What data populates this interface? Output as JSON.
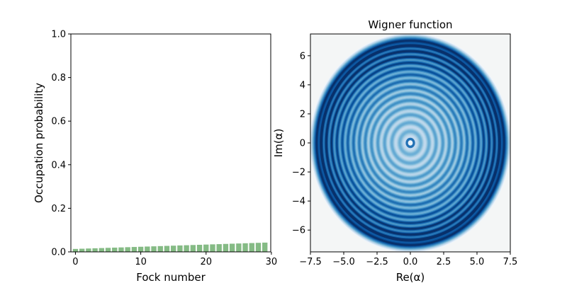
{
  "chart_data": [
    {
      "type": "bar",
      "title": "",
      "xlabel": "Fock number",
      "ylabel": "Occupation probability",
      "xlim": [
        -0.7,
        29.9
      ],
      "ylim": [
        0,
        1.0
      ],
      "xticks": [
        0,
        10,
        20,
        30
      ],
      "yticks": [
        0.0,
        0.2,
        0.4,
        0.6,
        0.8,
        1.0
      ],
      "xtick_labels": [
        "0",
        "10",
        "20",
        "30"
      ],
      "ytick_labels": [
        "0.0",
        "0.2",
        "0.4",
        "0.6",
        "0.8",
        "1.0"
      ],
      "bar_color": "#66aa66",
      "bar_alpha": 0.8,
      "bar_width": 0.8,
      "x": [
        0,
        1,
        2,
        3,
        4,
        5,
        6,
        7,
        8,
        9,
        10,
        11,
        12,
        13,
        14,
        15,
        16,
        17,
        18,
        19,
        20,
        21,
        22,
        23,
        24,
        25,
        26,
        27,
        28,
        29
      ],
      "values": [
        0.0135,
        0.0145,
        0.0155,
        0.0165,
        0.0175,
        0.0185,
        0.0195,
        0.0205,
        0.0215,
        0.0225,
        0.0235,
        0.0245,
        0.0255,
        0.0265,
        0.0275,
        0.0285,
        0.0295,
        0.0305,
        0.0315,
        0.0325,
        0.0335,
        0.0345,
        0.0355,
        0.0365,
        0.0375,
        0.0385,
        0.0395,
        0.0405,
        0.0415,
        0.0425
      ],
      "grid": false
    },
    {
      "type": "heatmap",
      "title": "Wigner function",
      "xlabel": "Re(α)",
      "ylabel": "Im(α)",
      "xlim": [
        -7.5,
        7.5
      ],
      "ylim": [
        -7.5,
        7.5
      ],
      "xticks": [
        -7.5,
        -5.0,
        -2.5,
        0.0,
        2.5,
        5.0,
        7.5
      ],
      "yticks": [
        -6,
        -4,
        -2,
        0,
        2,
        4,
        6
      ],
      "xtick_labels": [
        "−7.5",
        "−5.0",
        "−2.5",
        "0.0",
        "2.5",
        "5.0",
        "7.5"
      ],
      "ytick_labels": [
        "−6",
        "−4",
        "−2",
        "0",
        "2",
        "4",
        "6"
      ],
      "colormap": "Blues",
      "pattern": "concentric rings centered at origin, darkest outer ring at radius ≈ 7",
      "ring_count": 15,
      "outer_radius": 7.1,
      "grid": false
    }
  ]
}
